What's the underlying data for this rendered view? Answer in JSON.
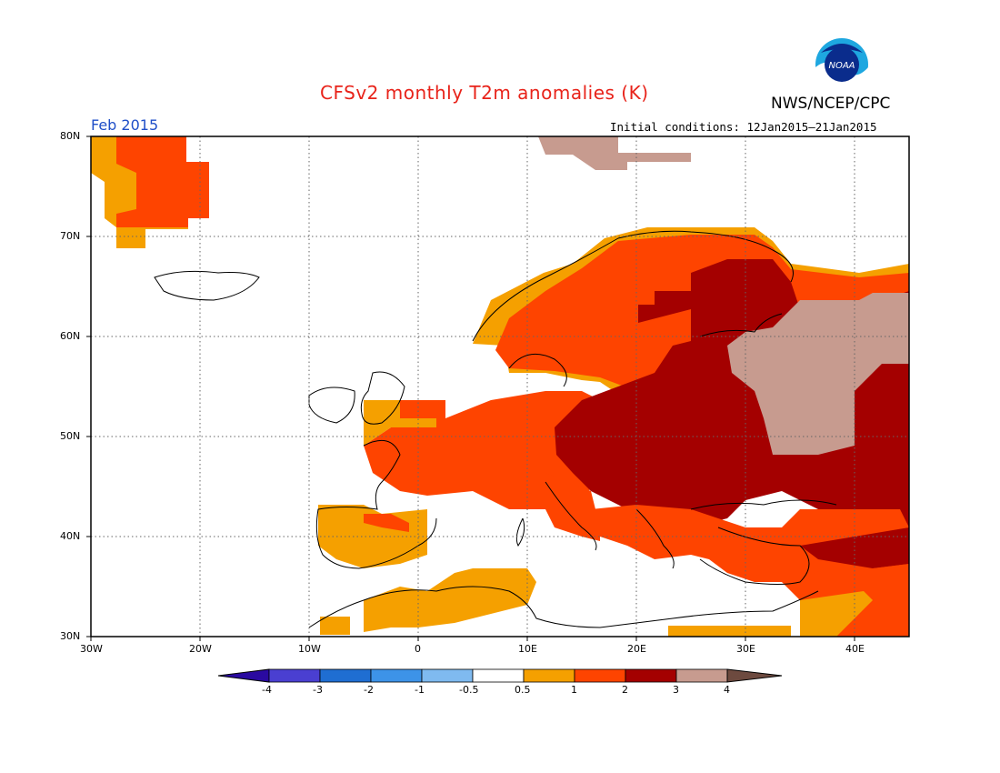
{
  "title": "CFSv2 monthly T2m anomalies (K)",
  "organization": "NWS/NCEP/CPC",
  "logo_text": "NOAA",
  "month": "Feb 2015",
  "initial_conditions": "Initial conditions: 12Jan2015–21Jan2015",
  "map": {
    "lat_labels": [
      "80N",
      "70N",
      "60N",
      "50N",
      "40N",
      "30N"
    ],
    "lon_labels": [
      "30W",
      "20W",
      "10W",
      "0",
      "10E",
      "20E",
      "30E",
      "40E"
    ],
    "lat_range": [
      30,
      80
    ],
    "lon_range": [
      -30,
      45
    ],
    "grid": "dotted"
  },
  "legend": {
    "colors": [
      "#2a0aa0",
      "#4a3fd1",
      "#1f6ed2",
      "#3d93e8",
      "#7fbaf0",
      "#ffffff",
      "#f5a000",
      "#fe4400",
      "#a40000",
      "#c79b8f",
      "#6d4a3f"
    ],
    "labels": [
      "-4",
      "-3",
      "-2",
      "-1",
      "-0.5",
      "0.5",
      "1",
      "2",
      "3",
      "4"
    ]
  },
  "colors": {
    "orange": "#f5a000",
    "red": "#fe4400",
    "darkred": "#a40000",
    "tan": "#c79b8f"
  }
}
